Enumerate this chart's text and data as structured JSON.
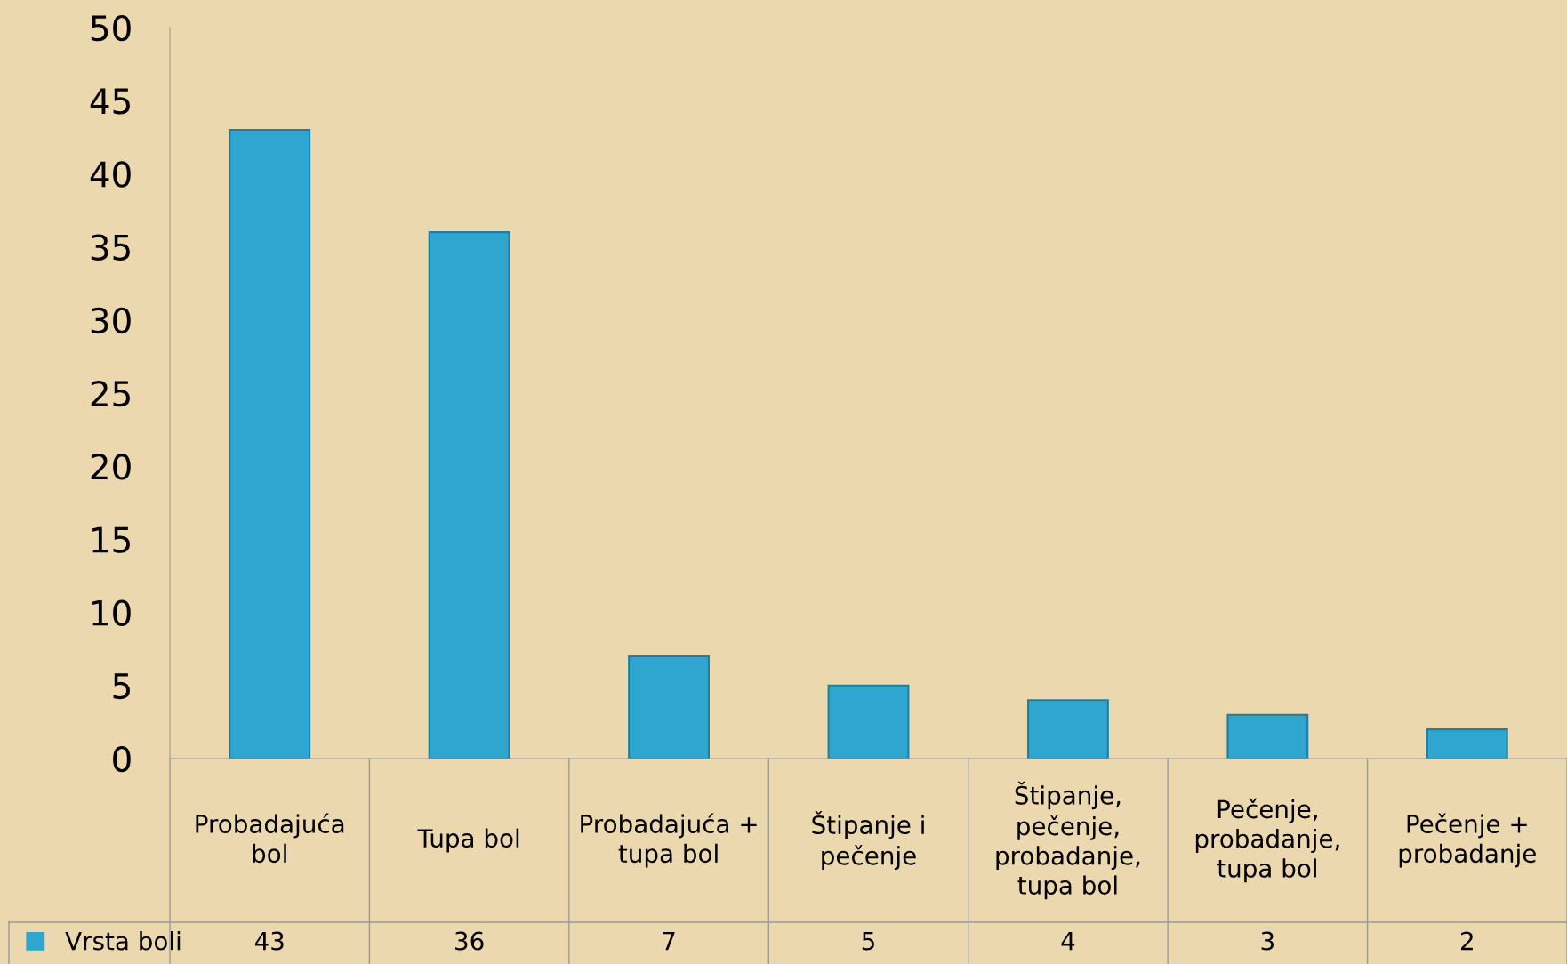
{
  "chart_data": {
    "type": "bar",
    "categories": [
      "Probadajuća\nbol",
      "Tupa bol",
      "Probadajuća +\ntupa bol",
      "Štipanje i\npečenje",
      "Štipanje,\npečenje,\nprobadanje,\ntupa bol",
      "Pečenje,\nprobadanje,\ntupa bol",
      "Pečenje +\nprobadanje"
    ],
    "series": [
      {
        "name": "Vrsta boli",
        "color": "#2ea6cf",
        "values": [
          43,
          36,
          7,
          5,
          4,
          3,
          2
        ]
      }
    ],
    "ylim": [
      0,
      50
    ],
    "yticks": [
      0,
      5,
      10,
      15,
      20,
      25,
      30,
      35,
      40,
      45,
      50
    ],
    "data_labels": true,
    "legend": "bottom",
    "grid": false
  }
}
